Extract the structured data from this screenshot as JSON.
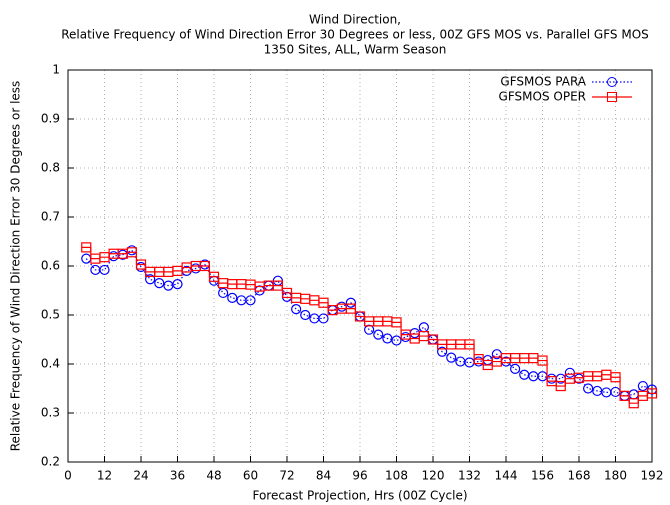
{
  "chart_data": {
    "type": "line",
    "title": [
      "Wind Direction,",
      "Relative Frequency of Wind Direction Error 30 Degrees or less, 00Z GFS MOS vs. Parallel GFS MOS",
      "1350 Sites, ALL, Warm Season"
    ],
    "x_label": "Forecast Projection, Hrs (00Z Cycle)",
    "y_label": "Relative Frequency of Wind Direction Error 30 Degrees or less",
    "x": [
      6,
      9,
      12,
      15,
      18,
      21,
      24,
      27,
      30,
      33,
      36,
      39,
      42,
      45,
      48,
      51,
      54,
      57,
      60,
      63,
      66,
      69,
      72,
      75,
      78,
      81,
      84,
      87,
      90,
      93,
      96,
      99,
      102,
      105,
      108,
      111,
      114,
      117,
      120,
      123,
      126,
      129,
      132,
      135,
      138,
      141,
      144,
      147,
      150,
      153,
      156,
      159,
      162,
      165,
      168,
      171,
      174,
      177,
      180,
      183,
      186,
      189,
      192
    ],
    "series": [
      {
        "name": "GFSMOS PARA",
        "color": "#0000ff",
        "style": "dotted",
        "marker": "circle",
        "values": [
          0.615,
          0.592,
          0.592,
          0.62,
          0.623,
          0.632,
          0.598,
          0.573,
          0.565,
          0.56,
          0.563,
          0.59,
          0.595,
          0.603,
          0.57,
          0.545,
          0.535,
          0.53,
          0.53,
          0.55,
          0.56,
          0.57,
          0.537,
          0.512,
          0.5,
          0.493,
          0.493,
          0.51,
          0.517,
          0.525,
          0.497,
          0.47,
          0.46,
          0.452,
          0.448,
          0.455,
          0.463,
          0.475,
          0.45,
          0.425,
          0.413,
          0.405,
          0.403,
          0.405,
          0.408,
          0.42,
          0.405,
          0.39,
          0.378,
          0.375,
          0.375,
          0.37,
          0.37,
          0.382,
          0.37,
          0.35,
          0.345,
          0.342,
          0.343,
          0.335,
          0.338,
          0.355,
          0.348
        ]
      },
      {
        "name": "GFSMOS OPER",
        "color": "#ff0000",
        "style": "steps",
        "marker": "square",
        "values": [
          0.638,
          0.615,
          0.618,
          0.625,
          0.625,
          0.628,
          0.603,
          0.588,
          0.588,
          0.588,
          0.59,
          0.597,
          0.6,
          0.6,
          0.578,
          0.565,
          0.563,
          0.563,
          0.562,
          0.558,
          0.56,
          0.56,
          0.545,
          0.535,
          0.533,
          0.53,
          0.525,
          0.51,
          0.513,
          0.513,
          0.497,
          0.487,
          0.487,
          0.487,
          0.485,
          0.46,
          0.452,
          0.457,
          0.45,
          0.44,
          0.44,
          0.44,
          0.44,
          0.41,
          0.398,
          0.405,
          0.412,
          0.412,
          0.412,
          0.412,
          0.407,
          0.365,
          0.355,
          0.37,
          0.372,
          0.375,
          0.375,
          0.378,
          0.373,
          0.335,
          0.32,
          0.335,
          0.34
        ]
      }
    ],
    "xlim": [
      0,
      192
    ],
    "xticks": [
      0,
      12,
      24,
      36,
      48,
      60,
      72,
      84,
      96,
      108,
      120,
      132,
      144,
      156,
      168,
      180,
      192
    ],
    "ylim": [
      0.2,
      1
    ],
    "yticks": [
      0.2,
      0.3,
      0.4,
      0.5,
      0.6,
      0.7,
      0.8,
      0.9,
      1
    ],
    "grid": true,
    "legend": "top-right"
  }
}
